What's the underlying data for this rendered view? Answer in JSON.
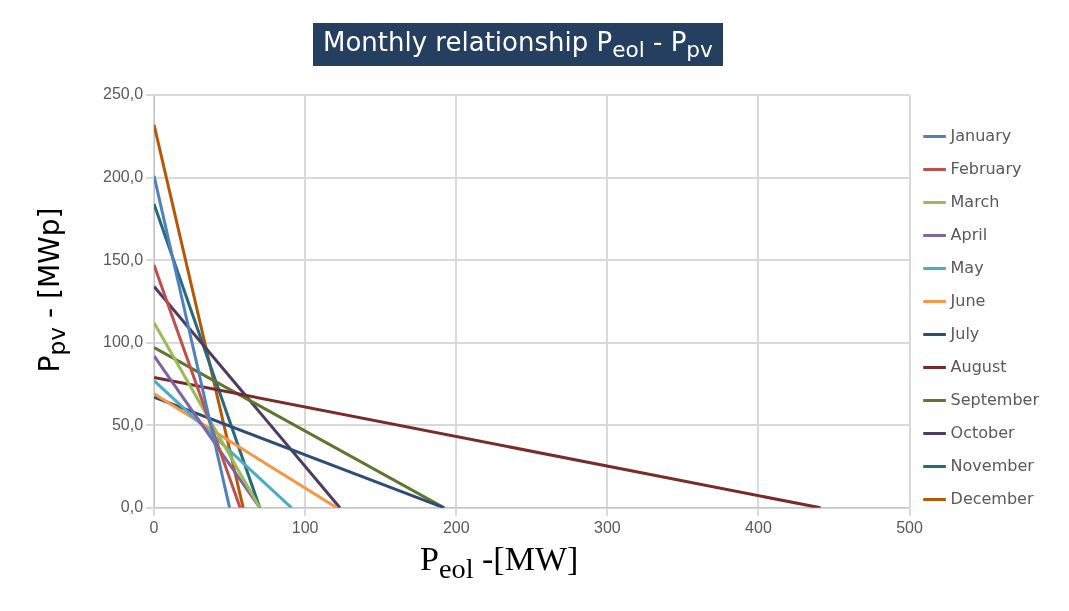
{
  "chart_data": {
    "type": "line",
    "title": "Monthly relationship P$_{eol}$ - P$_{pv}$",
    "xlabel": "P$_{eol}$ -[MW]",
    "ylabel": "P$_{pv}$ - [MWp]",
    "xlim": [
      0,
      500
    ],
    "xticks": [
      0,
      100,
      200,
      300,
      400,
      500
    ],
    "ylim": [
      0,
      250
    ],
    "yticks": [
      {
        "value": 0,
        "label": "0,0"
      },
      {
        "value": 50,
        "label": "50,0"
      },
      {
        "value": 100,
        "label": "100,0"
      },
      {
        "value": 150,
        "label": "150,0"
      },
      {
        "value": 200,
        "label": "200,0"
      },
      {
        "value": 250,
        "label": "250,0"
      }
    ],
    "grid": true,
    "legend": "right",
    "marker": "none",
    "line_style": "solid",
    "series": [
      {
        "name": "January",
        "color": "#4f81bd",
        "x": [
          0,
          50
        ],
        "values": [
          201,
          0
        ]
      },
      {
        "name": "February",
        "color": "#c0504d",
        "x": [
          0,
          57
        ],
        "values": [
          147,
          0
        ]
      },
      {
        "name": "March",
        "color": "#9bbb59",
        "x": [
          0,
          70
        ],
        "values": [
          112,
          0
        ]
      },
      {
        "name": "April",
        "color": "#8064a2",
        "x": [
          0,
          70
        ],
        "values": [
          92,
          0
        ]
      },
      {
        "name": "May",
        "color": "#4bacc6",
        "x": [
          0,
          91
        ],
        "values": [
          77,
          0
        ]
      },
      {
        "name": "June",
        "color": "#f79646",
        "x": [
          0,
          121
        ],
        "values": [
          69,
          0
        ]
      },
      {
        "name": "July",
        "color": "#2c4d75",
        "x": [
          0,
          192
        ],
        "values": [
          67,
          0
        ]
      },
      {
        "name": "August",
        "color": "#772c2a",
        "x": [
          0,
          441
        ],
        "values": [
          79,
          0
        ]
      },
      {
        "name": "September",
        "color": "#5f7530",
        "x": [
          0,
          192
        ],
        "values": [
          97,
          0
        ]
      },
      {
        "name": "October",
        "color": "#4d3b62",
        "x": [
          0,
          123
        ],
        "values": [
          134,
          0
        ]
      },
      {
        "name": "November",
        "color": "#276a7c",
        "x": [
          0,
          70
        ],
        "values": [
          184,
          0
        ]
      },
      {
        "name": "December",
        "color": "#b65708",
        "x": [
          0,
          59
        ],
        "values": [
          232,
          0
        ]
      }
    ]
  }
}
